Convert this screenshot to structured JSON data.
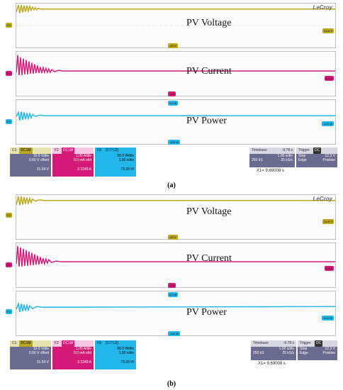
{
  "brand": "LeCroy",
  "labels": {
    "voltage": "PV Voltage",
    "current": "PV Current",
    "power": "PV Power"
  },
  "channels": {
    "c1": {
      "name": "C1",
      "hdr": "DC1M",
      "scale": "10.0 V/div",
      "offset": "0.00 V offset",
      "value": "31.54 V",
      "color": "#b9a81c"
    },
    "f2": {
      "name": "F2",
      "hdr": "DC1M",
      "scale": "1.00 A/div",
      "offset": "0.0 mA ofst",
      "value": "2.3249 A",
      "color": "#d61a78"
    },
    "f3": {
      "name": "F3",
      "hdr": "(C1*C2)",
      "scale": "50.0 W/div",
      "offset": "1.00 s/div",
      "value": "73.33 W",
      "color": "#22b7e8"
    }
  },
  "timebase": {
    "label": "Timebase",
    "value": "-9.78 s",
    "div": "1.00 s/div",
    "samples": "250 kS",
    "rate": "25 kS/s"
  },
  "trigger": {
    "label": "Trigger",
    "mode": "DC",
    "stop_label": "Stop",
    "stop_val": "12.3 V",
    "edge_label": "Edge",
    "edge_val": "Positive"
  },
  "cursor": {
    "x1": "X1= 9.69008 s"
  },
  "tags": {
    "t1": "-40 V",
    "t2": "-2 A",
    "t3": "0.0 W",
    "t4": "-100 W",
    "r1": "14.0 V",
    "r2": "1.4 A",
    "r3": "14.0 W"
  },
  "captions": {
    "a": "(a)",
    "b": "(b)"
  }
}
